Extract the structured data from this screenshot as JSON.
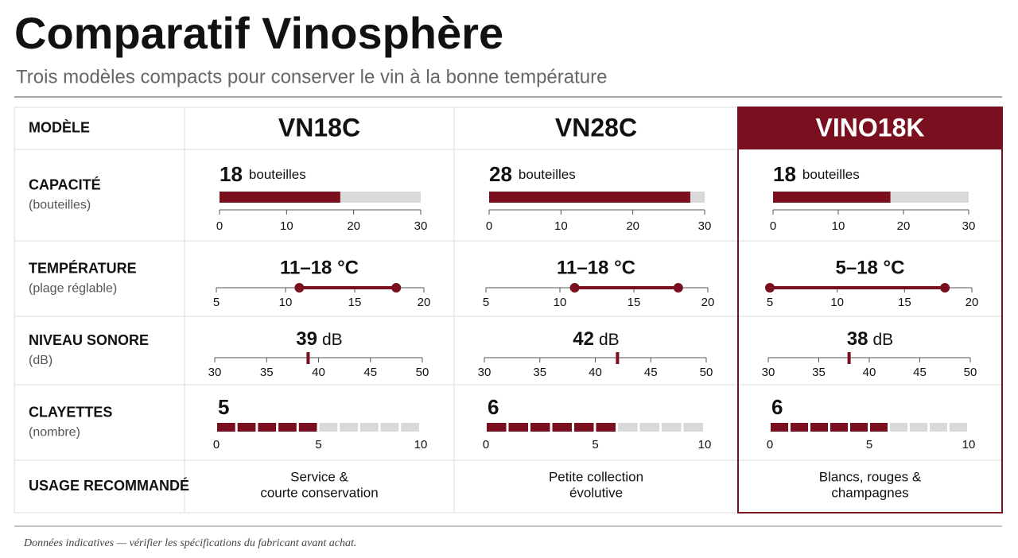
{
  "header": {
    "title": "Comparatif Vinosphère",
    "subtitle": "Trois modèles compacts pour conserver le vin à la bonne température"
  },
  "table": {
    "row_labels": [
      {
        "label": "MODÈLE"
      },
      {
        "label": "CAPACITÉ",
        "sublabel": "(bouteilles)"
      },
      {
        "label": "TEMPÉRATURE",
        "sublabel": "(plage réglable)"
      },
      {
        "label": "NIVEAU SONORE",
        "sublabel": "(dB)"
      },
      {
        "label": "CLAYETTES",
        "sublabel": "(nombre)"
      },
      {
        "label": "USAGE RECOMMANDÉ"
      }
    ],
    "models": [
      {
        "name": "VN18C",
        "highlight": false,
        "capacity": 18,
        "capacity_unit": "bouteilles",
        "temp_min": 11,
        "temp_max": 18,
        "temp_label": "11–18 °C",
        "noise": 39,
        "noise_unit": "dB",
        "shelves": 5,
        "usage": [
          "Service &",
          "courte conservation"
        ]
      },
      {
        "name": "VN28C",
        "highlight": false,
        "capacity": 28,
        "capacity_unit": "bouteilles",
        "temp_min": 11,
        "temp_max": 18,
        "temp_label": "11–18 °C",
        "noise": 42,
        "noise_unit": "dB",
        "shelves": 6,
        "usage": [
          "Petite collection",
          "évolutive"
        ]
      },
      {
        "name": "VINO18K",
        "highlight": true,
        "capacity": 18,
        "capacity_unit": "bouteilles",
        "temp_min": 5,
        "temp_max": 18,
        "temp_label": "5–18 °C",
        "noise": 38,
        "noise_unit": "dB",
        "shelves": 6,
        "usage": [
          "Blancs, rouges &",
          "champagnes"
        ]
      }
    ],
    "scales": {
      "capacity": {
        "lim": [
          0,
          30
        ],
        "ticks": [
          0,
          10,
          20,
          30
        ]
      },
      "temperature": {
        "lim": [
          5,
          20
        ],
        "ticks": [
          5,
          10,
          15,
          20
        ]
      },
      "noise": {
        "lim": [
          30,
          50
        ],
        "ticks": [
          30,
          35,
          40,
          45,
          50
        ]
      },
      "shelves": {
        "lim": [
          0,
          10
        ],
        "ticks": [
          0,
          5,
          10
        ]
      }
    },
    "accent_color": "#7a0f1f"
  },
  "footer": "Données indicatives — vérifier les spécifications du fabricant avant achat."
}
